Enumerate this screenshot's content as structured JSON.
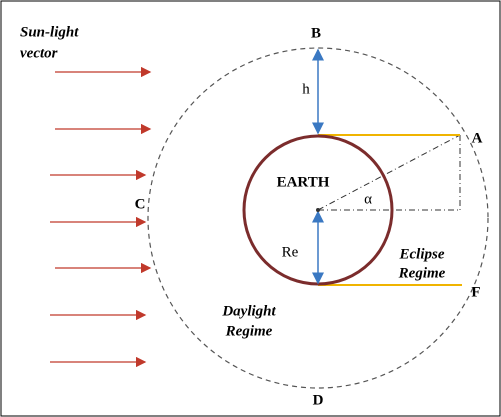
{
  "title": [
    "Sun-light",
    "vector"
  ],
  "points": {
    "A": "A",
    "B": "B",
    "C": "C",
    "D": "D",
    "F": "F"
  },
  "labels": {
    "h": "h",
    "earth": "EARTH",
    "alpha": "α",
    "re": "Re",
    "eclipse": [
      "Eclipse",
      "Regime"
    ],
    "daylight": [
      "Daylight",
      "Regime"
    ]
  }
}
